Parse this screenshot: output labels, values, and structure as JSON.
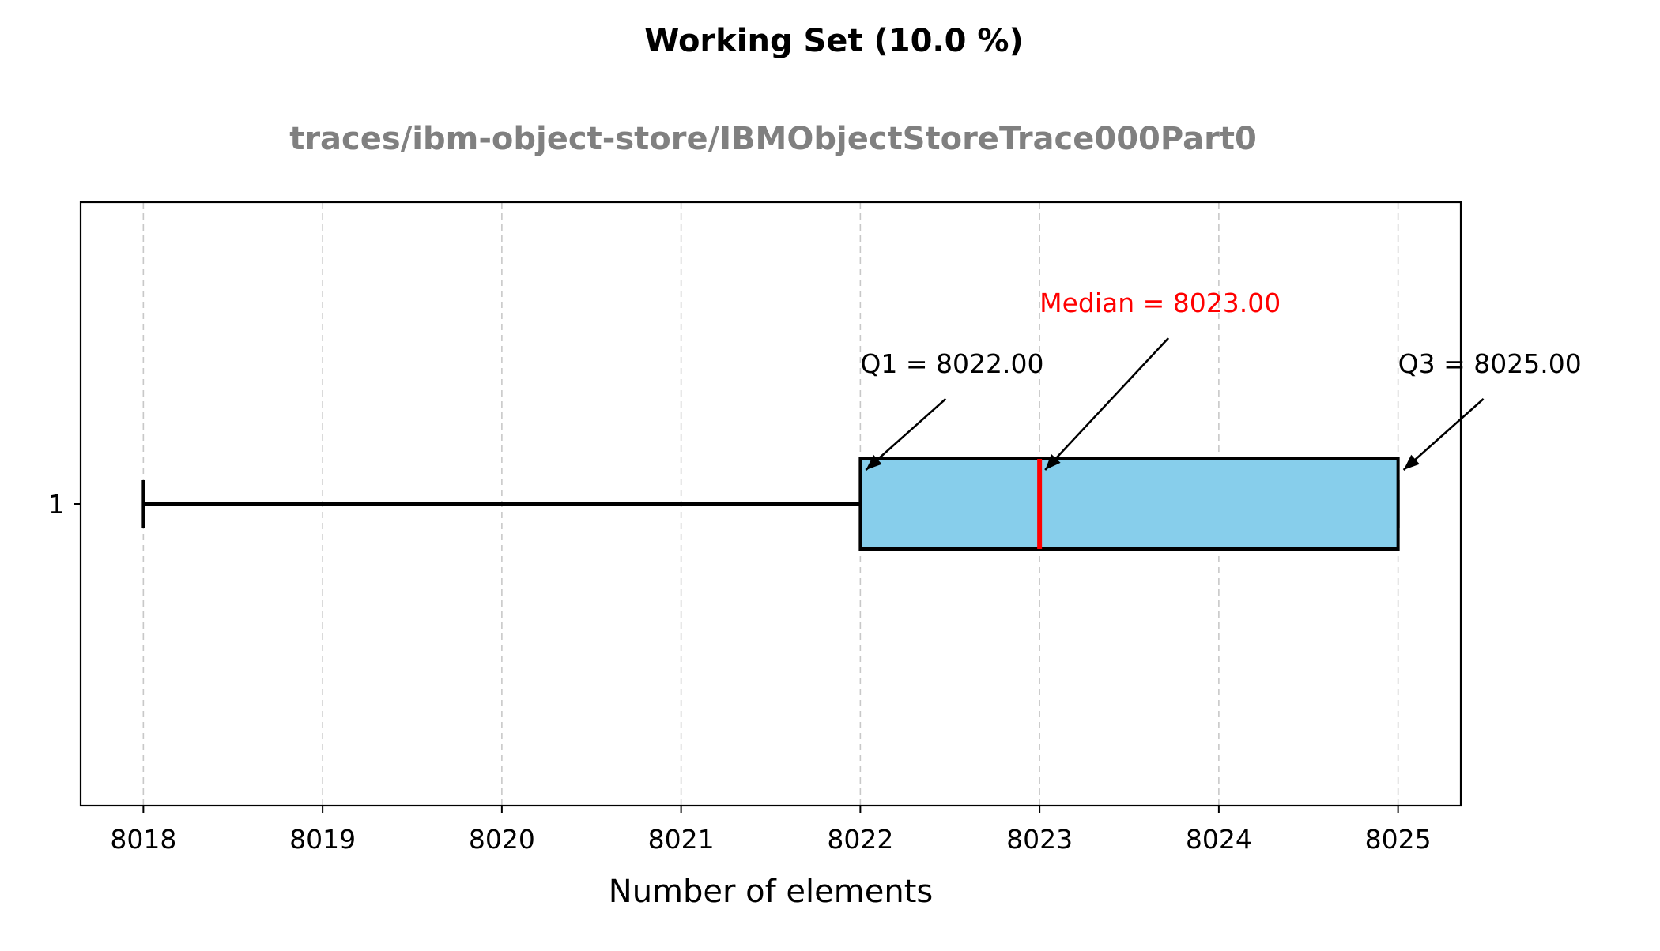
{
  "chart_data": {
    "type": "box",
    "orientation": "horizontal",
    "title": "Working Set (10.0 %)",
    "subtitle": "traces/ibm-object-store/IBMObjectStoreTrace000Part0",
    "xlabel": "Number of elements",
    "ylabel": "",
    "xlim": [
      8017.65,
      8025.35
    ],
    "x_ticks": [
      8018,
      8019,
      8020,
      8021,
      8022,
      8023,
      8024,
      8025
    ],
    "y_ticks": [
      "1"
    ],
    "grid": "vertical dashed",
    "series": [
      {
        "category": "1",
        "whisker_low": 8018,
        "q1": 8022,
        "median": 8023,
        "q3": 8025,
        "whisker_high": 8025
      }
    ],
    "annotations": {
      "q1": "Q1 = 8022.00",
      "median": "Median = 8023.00",
      "q3": "Q3 = 8025.00"
    },
    "colors": {
      "box_fill": "#87ceeb",
      "median_line": "#ff0000",
      "median_text": "#ff0000",
      "subtitle": "#808080",
      "grid": "#c8c8c8"
    }
  }
}
